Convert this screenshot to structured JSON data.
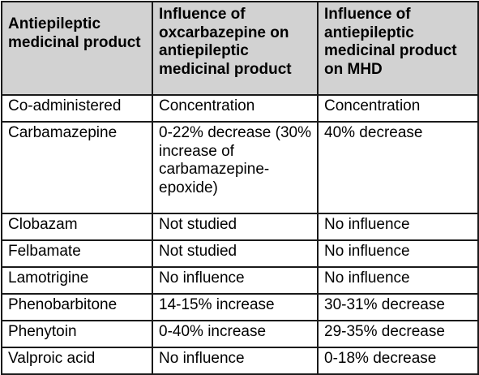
{
  "table": {
    "headers": [
      "Antiepileptic medicinal product",
      "Influence of oxcarbazepine on antiepileptic medicinal product",
      "Influence of antiepileptic medicinal product on MHD"
    ],
    "subheader": [
      "Co-administered",
      "Concentration",
      "Concentration"
    ],
    "rows": [
      [
        "Carbamazepine",
        "0-22% decrease (30% increase of carbamazepine-epoxide)",
        "40% decrease"
      ],
      [
        "Clobazam",
        "Not studied",
        "No influence"
      ],
      [
        "Felbamate",
        "Not studied",
        "No influence"
      ],
      [
        "Lamotrigine",
        "No influence",
        "No influence"
      ],
      [
        "Phenobarbitone",
        "14-15% increase",
        "30-31% decrease"
      ],
      [
        "Phenytoin",
        "0-40% increase",
        "29-35% decrease"
      ],
      [
        "Valproic acid",
        "No influence",
        "0-18% decrease"
      ]
    ]
  }
}
